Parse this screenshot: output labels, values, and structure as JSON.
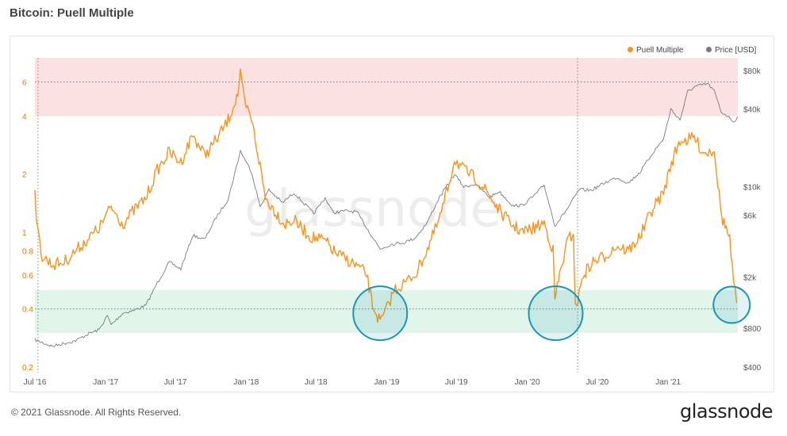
{
  "title": "Bitcoin: Puell Multiple",
  "footer": "© 2021 Glassnode. All Rights Reserved.",
  "brand": "glassnode",
  "watermark": "glassnode",
  "colors": {
    "puell": "#f7931a",
    "price": "#7a7a7a",
    "red_band": "#fbe1e1",
    "green_band": "#e1f5ea",
    "circle": "#1a96b4"
  },
  "chart_data": {
    "type": "line",
    "x_ticks": [
      "Jul '16",
      "Jan '17",
      "Jul '17",
      "Jan '18",
      "Jul '18",
      "Jan '19",
      "Jul '19",
      "Jan '20",
      "Jul '20",
      "Jan '21"
    ],
    "y_left": {
      "scale": "log",
      "ticks": [
        "0.2",
        "0.4",
        "0.6",
        "0.8",
        "1",
        "2",
        "4",
        "6"
      ],
      "range": [
        0.2,
        8
      ]
    },
    "y_right": {
      "scale": "log",
      "ticks": [
        "$400",
        "$800",
        "$2k",
        "$6k",
        "$10k",
        "$40k",
        "$80k"
      ],
      "range": [
        400,
        100000
      ]
    },
    "bands": [
      {
        "name": "top",
        "from": 4,
        "to": 8,
        "line": 6
      },
      {
        "name": "bottom",
        "from": 0.3,
        "to": 0.5,
        "line": 0.4
      }
    ],
    "vlines": [
      "2016-07-09",
      "2020-05-11"
    ],
    "circles": [
      "2018-12",
      "2020-03",
      "2021-06"
    ],
    "series": [
      {
        "name": "Puell Multiple",
        "axis": "left",
        "x": [
          "2016-07-01",
          "2016-07-08",
          "2016-07-20",
          "2016-08-15",
          "2016-09-15",
          "2016-10-15",
          "2016-11-15",
          "2016-12-15",
          "2017-01-15",
          "2017-02-15",
          "2017-03-15",
          "2017-04-15",
          "2017-05-15",
          "2017-06-15",
          "2017-07-15",
          "2017-08-15",
          "2017-09-15",
          "2017-10-15",
          "2017-11-15",
          "2017-12-10",
          "2017-12-17",
          "2017-12-28",
          "2018-01-15",
          "2018-02-06",
          "2018-02-20",
          "2018-03-15",
          "2018-04-10",
          "2018-05-05",
          "2018-06-15",
          "2018-07-25",
          "2018-08-20",
          "2018-09-20",
          "2018-10-20",
          "2018-11-10",
          "2018-11-25",
          "2018-12-15",
          "2019-01-01",
          "2019-01-20",
          "2019-02-20",
          "2019-03-20",
          "2019-04-20",
          "2019-05-20",
          "2019-06-15",
          "2019-06-26",
          "2019-07-20",
          "2019-08-20",
          "2019-09-20",
          "2019-10-20",
          "2019-11-20",
          "2019-12-20",
          "2020-01-20",
          "2020-02-14",
          "2020-03-08",
          "2020-03-13",
          "2020-03-25",
          "2020-04-15",
          "2020-04-30",
          "2020-05-05",
          "2020-05-12",
          "2020-05-25",
          "2020-06-20",
          "2020-07-20",
          "2020-08-20",
          "2020-09-20",
          "2020-10-20",
          "2020-11-20",
          "2020-12-20",
          "2021-01-10",
          "2021-02-01",
          "2021-02-21",
          "2021-03-10",
          "2021-04-01",
          "2021-04-15",
          "2021-05-01",
          "2021-05-10",
          "2021-05-20",
          "2021-06-01",
          "2021-06-10",
          "2021-06-20",
          "2021-06-28"
        ],
        "values": [
          1.6,
          1.0,
          0.75,
          0.68,
          0.7,
          0.8,
          0.92,
          1.05,
          1.35,
          1.1,
          1.3,
          1.5,
          2.1,
          2.6,
          2.3,
          3.2,
          2.5,
          3.0,
          3.8,
          5.2,
          6.5,
          4.6,
          3.8,
          2.2,
          1.5,
          1.3,
          1.1,
          1.15,
          0.95,
          0.9,
          0.78,
          0.72,
          0.66,
          0.6,
          0.42,
          0.34,
          0.4,
          0.5,
          0.55,
          0.62,
          0.85,
          1.2,
          1.9,
          2.4,
          2.1,
          1.9,
          1.6,
          1.3,
          1.1,
          1.0,
          1.05,
          1.12,
          0.8,
          0.45,
          0.6,
          0.9,
          1.0,
          0.4,
          0.45,
          0.6,
          0.7,
          0.75,
          0.85,
          0.8,
          0.95,
          1.3,
          1.6,
          2.3,
          3.0,
          3.0,
          3.1,
          2.6,
          2.6,
          2.7,
          1.8,
          1.2,
          1.05,
          0.9,
          0.55,
          0.43
        ]
      },
      {
        "name": "Price [USD]",
        "axis": "right",
        "x": [
          "2016-07-01",
          "2016-08-15",
          "2016-09-15",
          "2016-10-15",
          "2016-11-15",
          "2016-12-15",
          "2017-01-05",
          "2017-01-15",
          "2017-02-15",
          "2017-03-15",
          "2017-04-15",
          "2017-05-15",
          "2017-06-15",
          "2017-07-15",
          "2017-08-15",
          "2017-09-15",
          "2017-10-15",
          "2017-11-15",
          "2017-12-17",
          "2018-01-15",
          "2018-02-06",
          "2018-03-01",
          "2018-04-05",
          "2018-05-05",
          "2018-06-25",
          "2018-07-25",
          "2018-08-15",
          "2018-09-15",
          "2018-10-15",
          "2018-11-20",
          "2018-12-15",
          "2019-01-15",
          "2019-02-15",
          "2019-03-15",
          "2019-04-15",
          "2019-05-15",
          "2019-06-26",
          "2019-07-20",
          "2019-08-20",
          "2019-09-25",
          "2019-10-20",
          "2019-11-25",
          "2019-12-20",
          "2020-01-20",
          "2020-02-14",
          "2020-03-13",
          "2020-04-15",
          "2020-05-15",
          "2020-06-15",
          "2020-07-27",
          "2020-08-20",
          "2020-09-20",
          "2020-10-20",
          "2020-11-20",
          "2020-12-20",
          "2021-01-08",
          "2021-02-01",
          "2021-02-21",
          "2021-03-13",
          "2021-04-14",
          "2021-05-01",
          "2021-05-19",
          "2021-06-01",
          "2021-06-22",
          "2021-06-30"
        ],
        "values": [
          650,
          580,
          610,
          640,
          720,
          780,
          1000,
          850,
          1050,
          1100,
          1200,
          1800,
          2600,
          2300,
          4200,
          3900,
          5800,
          8000,
          19000,
          13000,
          7000,
          9500,
          7500,
          9000,
          6200,
          8200,
          6300,
          6500,
          6400,
          4300,
          3300,
          3600,
          3700,
          4000,
          5200,
          8000,
          12500,
          10000,
          10500,
          8300,
          9200,
          7100,
          7200,
          8600,
          10300,
          5000,
          6800,
          9500,
          9400,
          11000,
          11800,
          10700,
          13000,
          18000,
          23500,
          40000,
          33000,
          55000,
          60000,
          63000,
          55000,
          38000,
          36000,
          32000,
          35000
        ]
      }
    ]
  }
}
